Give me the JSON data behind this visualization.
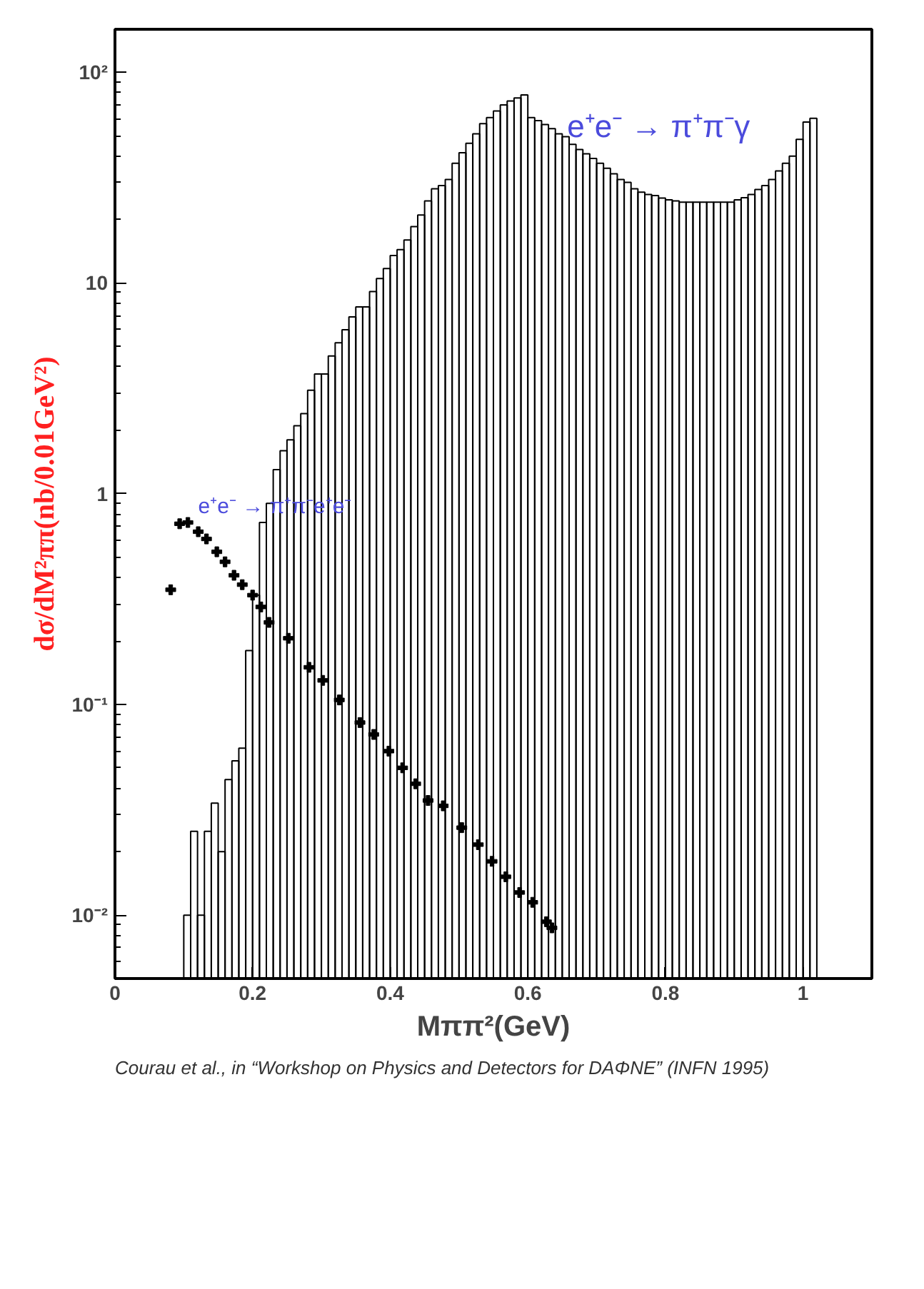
{
  "chart_data": {
    "type": "histogram",
    "ylabel": "dσ/dM²ππ(nb/0.01GeV²)",
    "xlabel": "Mππ²(GeV)",
    "annotations": [
      "Courau et al., in “Workshop on Physics and Detectors for DAΦNE” (INFN 1995)"
    ],
    "log": "y",
    "xlim": [
      0,
      1.1
    ],
    "xticks": [
      0,
      0.2,
      0.4,
      0.6,
      0.8,
      1
    ],
    "ylim": [
      0.005,
      160
    ],
    "yticks": [
      {
        "value": 0.01,
        "label": "10⁻²"
      },
      {
        "value": 0.1,
        "label": "10⁻¹"
      },
      {
        "value": 1,
        "label": "1"
      },
      {
        "value": 10,
        "label": "10"
      },
      {
        "value": 100,
        "label": "10²"
      }
    ],
    "grid": false,
    "bins": [
      0.1,
      0.11,
      0.12,
      0.13,
      0.14,
      0.15,
      0.16,
      0.17,
      0.18,
      0.19,
      0.2,
      0.21,
      0.22,
      0.23,
      0.24,
      0.25,
      0.26,
      0.27,
      0.28,
      0.29,
      0.3,
      0.31,
      0.32,
      0.33,
      0.34,
      0.35,
      0.36,
      0.37,
      0.38,
      0.39,
      0.4,
      0.41,
      0.42,
      0.43,
      0.44,
      0.45,
      0.46,
      0.47,
      0.48,
      0.49,
      0.5,
      0.51,
      0.52,
      0.53,
      0.54,
      0.55,
      0.56,
      0.57,
      0.58,
      0.59,
      0.6,
      0.61,
      0.62,
      0.63,
      0.64,
      0.65,
      0.66,
      0.67,
      0.68,
      0.69,
      0.7,
      0.71,
      0.72,
      0.73,
      0.74,
      0.75,
      0.76,
      0.77,
      0.78,
      0.79,
      0.8,
      0.81,
      0.82,
      0.83,
      0.84,
      0.85,
      0.86,
      0.87,
      0.88,
      0.89,
      0.9,
      0.91,
      0.92,
      0.93,
      0.94,
      0.95,
      0.96,
      0.97,
      0.98,
      0.99,
      1.0,
      1.01,
      1.02
    ],
    "series": [
      {
        "name": "e⁺e⁻ → π⁺π⁻γ",
        "color": "#000000",
        "values": [
          0.01,
          0.025,
          0.01,
          0.025,
          0.034,
          0.02,
          0.044,
          0.054,
          0.062,
          0.18,
          0.33,
          0.73,
          0.9,
          1.3,
          1.6,
          1.8,
          2.1,
          2.4,
          3.1,
          3.7,
          3.7,
          4.5,
          5.2,
          6.0,
          6.9,
          7.7,
          7.7,
          9.1,
          10.5,
          11.7,
          13.5,
          14.4,
          16,
          18.5,
          21,
          24.5,
          28,
          29,
          31,
          37,
          41.5,
          46,
          51,
          57,
          61,
          65.5,
          70,
          73,
          75.5,
          78,
          61,
          59,
          56.5,
          54,
          51,
          49.5,
          45.5,
          43,
          41,
          39,
          37,
          35,
          33,
          31,
          30,
          28,
          27,
          26.3,
          26,
          25.3,
          24.8,
          24.5,
          24.2,
          24.2,
          24.2,
          24.2,
          24.2,
          24.2,
          24.2,
          24.2,
          24.8,
          25.4,
          26.3,
          27.8,
          29,
          31,
          34,
          37,
          40,
          48,
          58,
          60.5
        ]
      },
      {
        "type": "scatter",
        "name": "e⁺e⁻ → π⁺π⁻e⁺e⁻",
        "color": "#000000",
        "marker": "cross",
        "x": [
          0.081,
          0.094,
          0.106,
          0.121,
          0.133,
          0.148,
          0.16,
          0.173,
          0.185,
          0.2,
          0.212,
          0.224,
          0.252,
          0.282,
          0.302,
          0.326,
          0.356,
          0.376,
          0.398,
          0.418,
          0.437,
          0.455,
          0.477,
          0.504,
          0.528,
          0.548,
          0.568,
          0.588,
          0.607,
          0.627,
          0.635
        ],
        "values": [
          0.35,
          0.72,
          0.73,
          0.66,
          0.61,
          0.53,
          0.475,
          0.41,
          0.37,
          0.33,
          0.29,
          0.245,
          0.206,
          0.15,
          0.13,
          0.105,
          0.082,
          0.072,
          0.06,
          0.05,
          0.042,
          0.035,
          0.033,
          0.026,
          0.0216,
          0.018,
          0.0152,
          0.0128,
          0.0115,
          0.0093,
          0.0087
        ]
      }
    ]
  }
}
